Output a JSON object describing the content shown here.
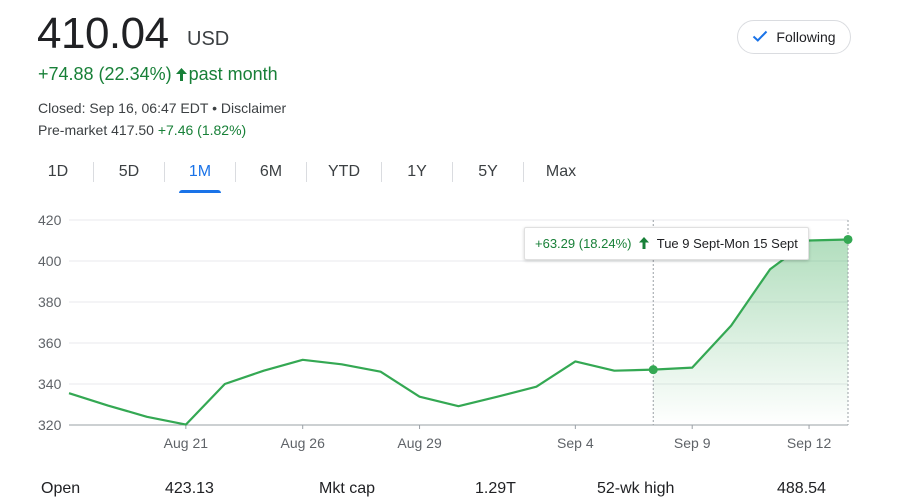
{
  "header": {
    "price": "410.04",
    "currency": "USD",
    "change": "+74.88 (22.34%)",
    "change_period": "past month",
    "closed_text": "Closed: Sep 16, 06:47 EDT • Disclaimer",
    "premarket_label": "Pre-market 417.50",
    "premarket_change": "+7.46 (1.82%)"
  },
  "follow_button": {
    "label": "Following"
  },
  "tabs": [
    "1D",
    "5D",
    "1M",
    "6M",
    "YTD",
    "1Y",
    "5Y",
    "Max"
  ],
  "active_tab": "1M",
  "tooltip": {
    "change": "+63.29 (18.24%)",
    "range": "Tue 9 Sept-Mon 15 Sept"
  },
  "colors": {
    "accent": "#1a73e8",
    "positive": "#188038",
    "line": "#34a853"
  },
  "chart_data": {
    "type": "line",
    "series": [
      {
        "values": [
          335.5,
          329.5,
          324.0,
          320.2,
          340.0,
          346.5,
          351.8,
          349.6,
          346.0,
          333.8,
          329.2,
          333.8,
          338.7,
          351.0,
          346.5,
          347.0,
          348.0,
          368.5,
          396.0,
          410.0,
          410.5
        ]
      }
    ],
    "x_ticks": [
      "Aug 21",
      "Aug 26",
      "Aug 29",
      "Sep 4",
      "Sep 9",
      "Sep 12"
    ],
    "y_ticks": [
      "420",
      "400",
      "380",
      "360",
      "340",
      "320"
    ],
    "ylim": [
      320,
      420
    ],
    "grid": true,
    "highlight_range": {
      "from": "Sep 9",
      "to": "Sep 15",
      "start_value": 347.0,
      "end_value": 410.5
    }
  },
  "stats": [
    {
      "label": "Open",
      "value": "423.13"
    },
    {
      "label": "Mkt cap",
      "value": "1.29T"
    },
    {
      "label": "52-wk high",
      "value": "488.54"
    }
  ]
}
